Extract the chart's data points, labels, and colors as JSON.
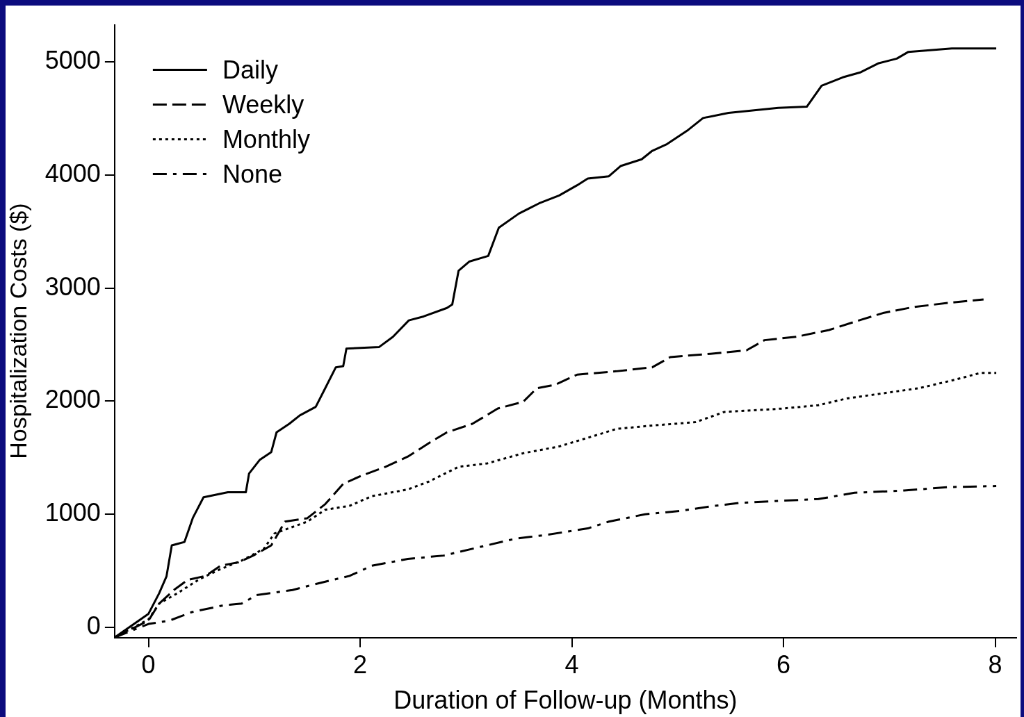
{
  "chart_data": {
    "type": "line",
    "xlabel": "Duration of Follow-up (Months)",
    "ylabel": "Hospitalization Costs ($)",
    "xlim": [
      -0.32,
      8.2
    ],
    "ylim": [
      -90,
      5330
    ],
    "xticks": [
      0,
      2,
      4,
      6,
      8
    ],
    "yticks": [
      0,
      1000,
      2000,
      3000,
      4000,
      5000
    ],
    "grid": false,
    "legend": "top left",
    "marker": "none",
    "series": [
      {
        "name": "Daily",
        "color": "#000000",
        "line_style": "solid",
        "x": [
          -0.32,
          0,
          0.1,
          0.17,
          0.22,
          0.34,
          0.42,
          0.52,
          0.75,
          0.92,
          0.95,
          1.05,
          1.16,
          1.21,
          1.33,
          1.43,
          1.58,
          1.67,
          1.77,
          1.84,
          1.87,
          2.18,
          2.31,
          2.46,
          2.6,
          2.82,
          2.87,
          2.93,
          3.03,
          3.21,
          3.31,
          3.5,
          3.69,
          3.88,
          4.05,
          4.15,
          4.35,
          4.46,
          4.66,
          4.76,
          4.9,
          5.1,
          5.24,
          5.48,
          5.95,
          6.22,
          6.36,
          6.56,
          6.73,
          6.9,
          7.07,
          7.18,
          7.59,
          8.01
        ],
        "values": [
          -90,
          120,
          300,
          450,
          725,
          755,
          970,
          1150,
          1195,
          1195,
          1360,
          1480,
          1550,
          1725,
          1800,
          1875,
          1950,
          2115,
          2300,
          2310,
          2465,
          2480,
          2570,
          2715,
          2750,
          2825,
          2855,
          3155,
          3235,
          3285,
          3535,
          3660,
          3750,
          3820,
          3910,
          3970,
          3990,
          4080,
          4140,
          4215,
          4275,
          4400,
          4505,
          4550,
          4595,
          4605,
          4790,
          4865,
          4910,
          4990,
          5030,
          5090,
          5120,
          5120
        ]
      },
      {
        "name": "Weekly",
        "color": "#000000",
        "line_style": "dashed",
        "x": [
          -0.32,
          0,
          0.1,
          0.24,
          0.37,
          0.54,
          0.68,
          0.85,
          0.99,
          1.16,
          1.29,
          1.5,
          1.67,
          1.84,
          2.01,
          2.24,
          2.45,
          2.65,
          2.82,
          3.06,
          3.3,
          3.54,
          3.67,
          3.84,
          4.05,
          4.42,
          4.76,
          4.93,
          5.31,
          5.65,
          5.82,
          6.12,
          6.43,
          6.73,
          6.94,
          7.21,
          7.55,
          7.89
        ],
        "values": [
          -90,
          60,
          210,
          330,
          420,
          455,
          545,
          575,
          635,
          725,
          935,
          965,
          1090,
          1270,
          1340,
          1420,
          1510,
          1630,
          1725,
          1800,
          1935,
          1995,
          2115,
          2145,
          2235,
          2265,
          2300,
          2390,
          2420,
          2450,
          2540,
          2570,
          2630,
          2720,
          2780,
          2830,
          2870,
          2900
        ]
      },
      {
        "name": "Monthly",
        "color": "#000000",
        "line_style": "dotted",
        "x": [
          -0.32,
          0,
          0.1,
          0.27,
          0.48,
          0.68,
          0.88,
          1.09,
          1.19,
          1.5,
          1.67,
          1.9,
          2.11,
          2.45,
          2.65,
          2.93,
          3.2,
          3.54,
          3.88,
          4.25,
          4.42,
          4.76,
          5.17,
          5.44,
          5.99,
          6.33,
          6.6,
          6.94,
          7.28,
          7.62,
          7.86,
          8.01
        ],
        "values": [
          -90,
          70,
          210,
          300,
          425,
          515,
          590,
          695,
          830,
          935,
          1040,
          1075,
          1160,
          1220,
          1290,
          1420,
          1450,
          1540,
          1600,
          1705,
          1755,
          1785,
          1815,
          1905,
          1935,
          1965,
          2025,
          2070,
          2115,
          2190,
          2250,
          2250
        ]
      },
      {
        "name": "None",
        "color": "#000000",
        "line_style": "dashdot",
        "x": [
          -0.32,
          0,
          0.2,
          0.41,
          0.71,
          0.88,
          1.02,
          1.36,
          1.63,
          1.9,
          2.11,
          2.45,
          2.79,
          3.06,
          3.47,
          3.74,
          4.15,
          4.35,
          4.69,
          5.03,
          5.31,
          5.58,
          5.99,
          6.33,
          6.67,
          7.14,
          7.55,
          8.01
        ],
        "values": [
          -90,
          30,
          60,
          135,
          195,
          210,
          285,
          330,
          395,
          455,
          545,
          605,
          635,
          695,
          785,
          815,
          875,
          935,
          1000,
          1030,
          1070,
          1100,
          1120,
          1135,
          1190,
          1210,
          1240,
          1250
        ]
      }
    ]
  }
}
